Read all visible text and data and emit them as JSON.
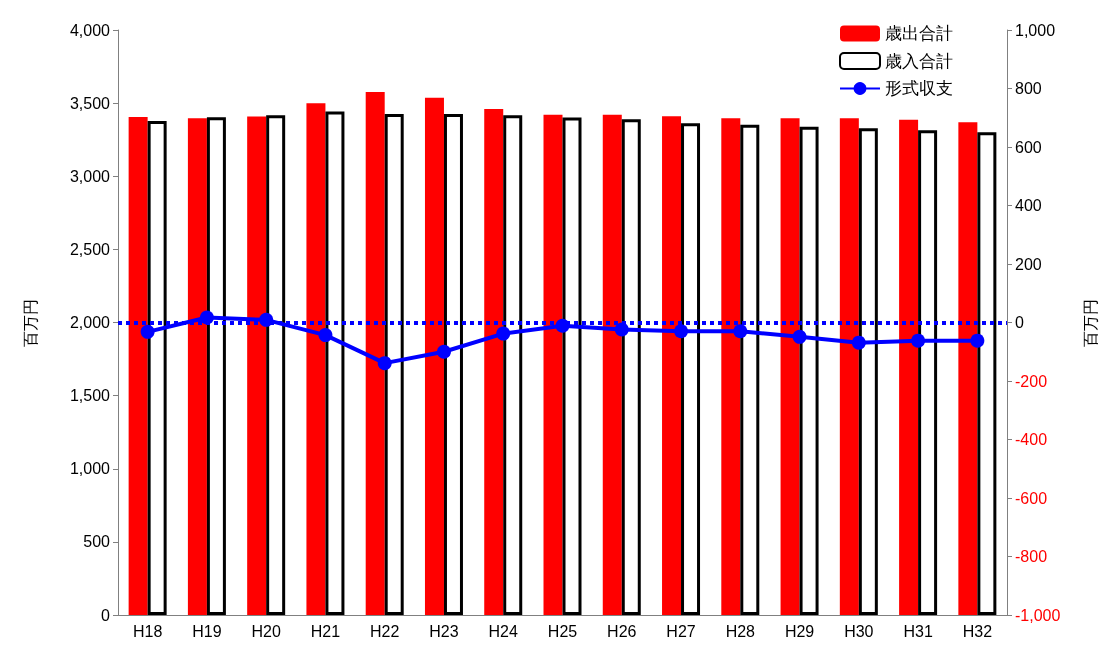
{
  "chart_data": {
    "type": "bar",
    "categories": [
      "H18",
      "H19",
      "H20",
      "H21",
      "H22",
      "H23",
      "H24",
      "H25",
      "H26",
      "H27",
      "H28",
      "H29",
      "H30",
      "H31",
      "H32"
    ],
    "series": [
      {
        "name": "歳出合計",
        "color": "#ff0000",
        "values": [
          3405,
          3397,
          3409,
          3499,
          3576,
          3537,
          3459,
          3421,
          3421,
          3410,
          3397,
          3397,
          3397,
          3386,
          3370
        ]
      },
      {
        "name": "歳入合計",
        "color": "#000000",
        "values": [
          3377,
          3403,
          3417,
          3443,
          3425,
          3425,
          3417,
          3401,
          3390,
          3363,
          3352,
          3339,
          3328,
          3315,
          3301
        ]
      },
      {
        "name": "形式収支",
        "type": "line",
        "axis": "y2",
        "color": "#0000ff",
        "marker": "circle",
        "values": [
          -32,
          17,
          9,
          -43,
          -139,
          -100,
          -38,
          -11,
          -24,
          -30,
          -30,
          -49,
          -69,
          -62,
          -62
        ]
      }
    ],
    "ylabel": "百万円",
    "y2label": "百万円",
    "ylim": [
      0,
      4000
    ],
    "yticks": [
      0,
      500,
      {
        "value": 1000,
        "label": "1,000"
      },
      {
        "value": 1500,
        "label": "1,500"
      },
      {
        "value": 2000,
        "label": "2,000"
      },
      {
        "value": 2500,
        "label": "2,500"
      },
      {
        "value": 3000,
        "label": "3,000"
      },
      {
        "value": 3500,
        "label": "3,500"
      },
      {
        "value": 4000,
        "label": "4,000"
      }
    ],
    "y2lim": [
      -1000,
      1000
    ],
    "y2ticks": [
      {
        "value": -1000,
        "label": "-1,000"
      },
      -800,
      -600,
      -400,
      -200,
      0,
      200,
      400,
      600,
      800,
      {
        "value": 1000,
        "label": "1,000"
      }
    ],
    "ref_lines": [
      {
        "axis": "y2",
        "value": 0,
        "color": "#0000ff",
        "line_style": "dotted"
      }
    ],
    "legend": "top right",
    "grid": false
  }
}
